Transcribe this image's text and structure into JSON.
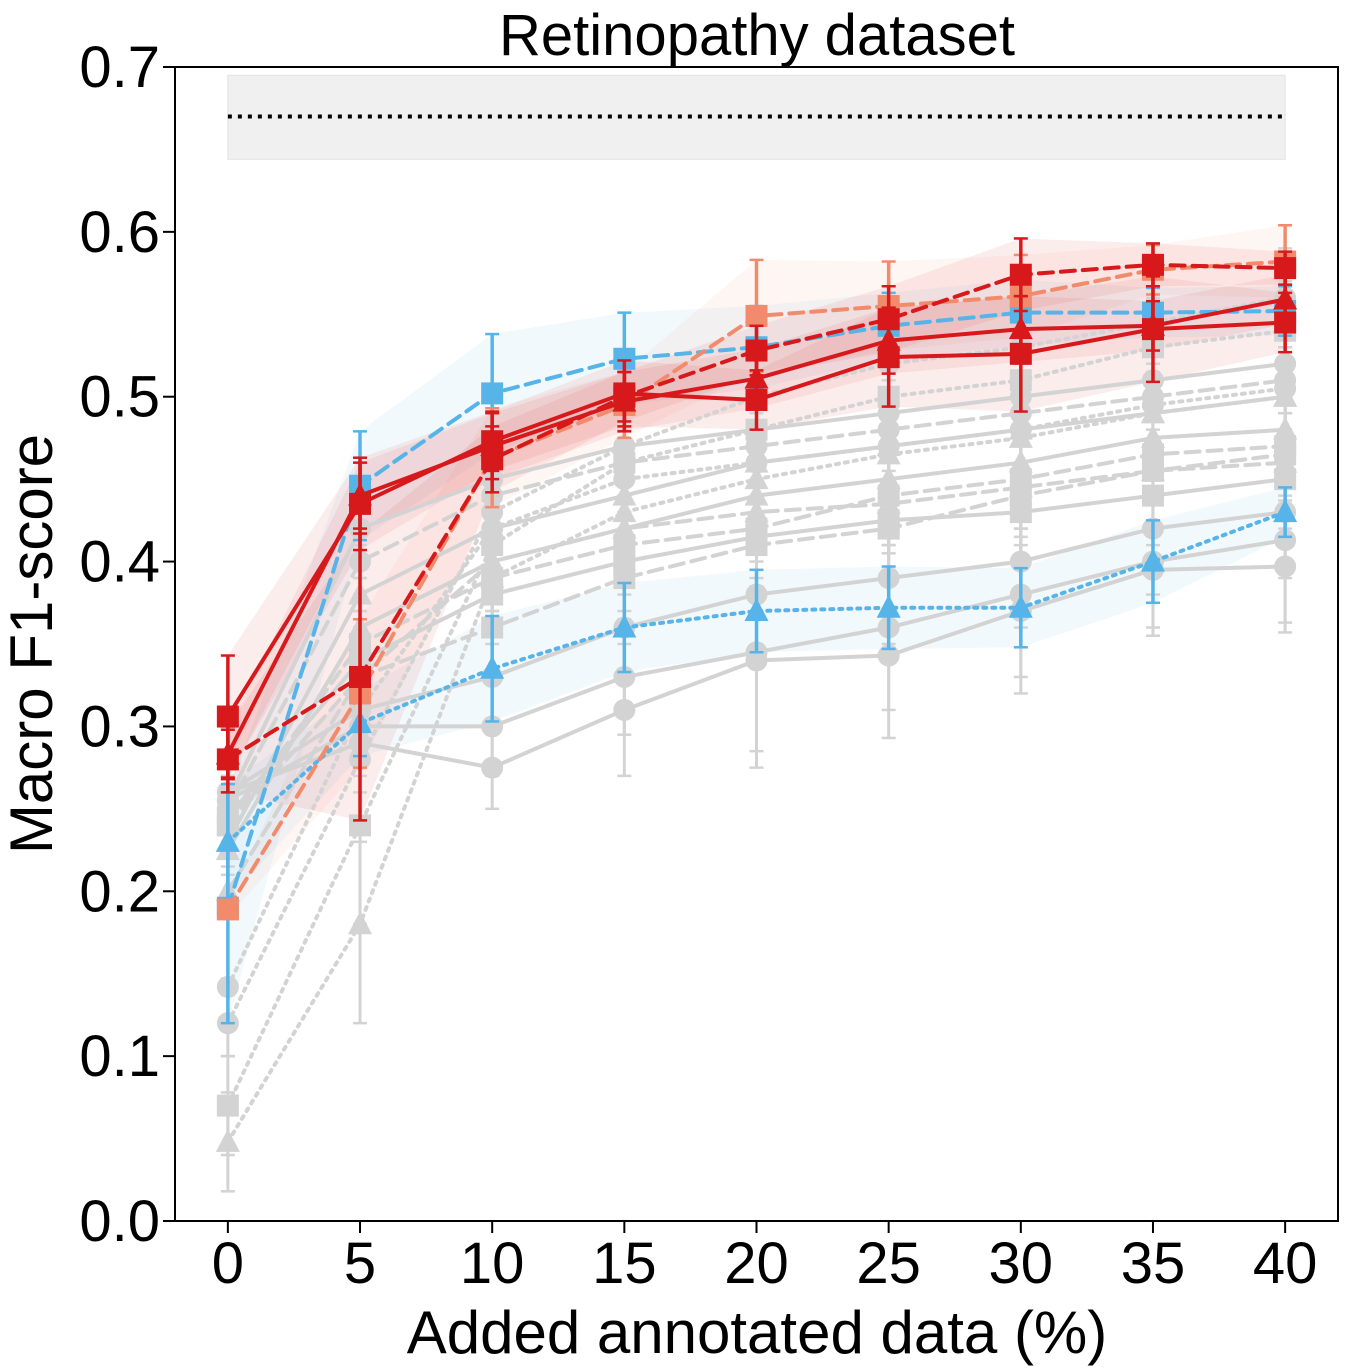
{
  "chart_data": {
    "type": "line",
    "title": "Retinopathy dataset",
    "xlabel": "Added annotated data (%)",
    "ylabel": "Macro F1-score",
    "xlim": [
      -2,
      42
    ],
    "ylim": [
      0.0,
      0.7
    ],
    "xticks": [
      0,
      5,
      10,
      15,
      20,
      25,
      30,
      35,
      40
    ],
    "xtick_labels": [
      "0",
      "5",
      "10",
      "15",
      "20",
      "25",
      "30",
      "35",
      "40"
    ],
    "yticks": [
      0.0,
      0.1,
      0.2,
      0.3,
      0.4,
      0.5,
      0.6,
      0.7
    ],
    "ytick_labels": [
      "0.0",
      "0.1",
      "0.2",
      "0.3",
      "0.4",
      "0.5",
      "0.6",
      "0.7"
    ],
    "grid": false,
    "legend": "none",
    "reference": {
      "value": 0.67,
      "band": [
        0.644,
        0.695
      ],
      "x_range": [
        0,
        40
      ],
      "color": "#000000",
      "band_color": "#f0f0f0",
      "style": "dotted"
    },
    "x": [
      0,
      5,
      10,
      15,
      20,
      25,
      30,
      35,
      40
    ],
    "series": [
      {
        "color": "#d3d3d3",
        "style": "solid",
        "marker": "circle",
        "values": [
          0.26,
          0.29,
          0.275,
          0.31,
          0.34,
          0.343,
          0.37,
          0.395,
          0.397
        ],
        "err": [
          0.01,
          0.03,
          0.025,
          0.04,
          0.065,
          0.05,
          0.05,
          0.04,
          0.04
        ]
      },
      {
        "color": "#d3d3d3",
        "style": "solid",
        "marker": "circle",
        "values": [
          0.255,
          0.3,
          0.3,
          0.33,
          0.345,
          0.36,
          0.38,
          0.4,
          0.413
        ],
        "err": [
          0.01,
          0.03,
          0.03,
          0.035,
          0.06,
          0.05,
          0.05,
          0.04,
          0.05
        ]
      },
      {
        "color": "#d3d3d3",
        "style": "solid",
        "marker": "circle",
        "values": [
          0.26,
          0.31,
          0.33,
          0.36,
          0.38,
          0.39,
          0.4,
          0.42,
          0.43
        ],
        "err": [
          0.01,
          0.03,
          0.03,
          0.03,
          0.04,
          0.04,
          0.04,
          0.04,
          0.04
        ]
      },
      {
        "color": "#d3d3d3",
        "style": "dashed",
        "marker": "square",
        "values": [
          0.24,
          0.33,
          0.36,
          0.39,
          0.41,
          0.42,
          0.44,
          0.455,
          0.465
        ],
        "err": [
          0.01,
          0.03,
          0.03,
          0.03,
          0.03,
          0.03,
          0.03,
          0.03,
          0.03
        ]
      },
      {
        "color": "#d3d3d3",
        "style": "dashed",
        "marker": "square",
        "values": [
          0.24,
          0.35,
          0.39,
          0.41,
          0.42,
          0.44,
          0.45,
          0.465,
          0.47
        ],
        "err": [
          0.01,
          0.03,
          0.03,
          0.03,
          0.03,
          0.03,
          0.03,
          0.03,
          0.03
        ]
      },
      {
        "color": "#d3d3d3",
        "style": "solid",
        "marker": "triangle",
        "values": [
          0.225,
          0.36,
          0.4,
          0.42,
          0.44,
          0.45,
          0.46,
          0.475,
          0.48
        ],
        "err": [
          0.01,
          0.03,
          0.03,
          0.03,
          0.03,
          0.03,
          0.03,
          0.03,
          0.03
        ]
      },
      {
        "color": "#d3d3d3",
        "style": "solid",
        "marker": "triangle",
        "values": [
          0.23,
          0.38,
          0.42,
          0.44,
          0.46,
          0.47,
          0.48,
          0.49,
          0.5
        ],
        "err": [
          0.01,
          0.03,
          0.03,
          0.03,
          0.03,
          0.03,
          0.03,
          0.03,
          0.03
        ]
      },
      {
        "color": "#d3d3d3",
        "style": "dashed",
        "marker": "circle",
        "values": [
          0.25,
          0.4,
          0.44,
          0.46,
          0.47,
          0.48,
          0.49,
          0.5,
          0.51
        ],
        "err": [
          0.01,
          0.03,
          0.03,
          0.03,
          0.03,
          0.03,
          0.03,
          0.03,
          0.03
        ]
      },
      {
        "color": "#d3d3d3",
        "style": "solid",
        "marker": "circle",
        "values": [
          0.255,
          0.42,
          0.45,
          0.47,
          0.48,
          0.49,
          0.5,
          0.51,
          0.52
        ],
        "err": [
          0.01,
          0.03,
          0.03,
          0.03,
          0.03,
          0.03,
          0.03,
          0.03,
          0.03
        ]
      },
      {
        "color": "#d3d3d3",
        "style": "dotted",
        "marker": "circle",
        "values": [
          0.142,
          0.31,
          0.42,
          0.45,
          0.46,
          0.47,
          0.48,
          0.495,
          0.505
        ],
        "err": [
          0.005,
          0.03,
          0.03,
          0.03,
          0.03,
          0.03,
          0.03,
          0.03,
          0.03
        ]
      },
      {
        "color": "#d3d3d3",
        "style": "dotted",
        "marker": "triangle",
        "values": [
          0.048,
          0.18,
          0.39,
          0.43,
          0.45,
          0.465,
          0.475,
          0.49,
          0.5
        ],
        "err": [
          0.03,
          0.06,
          0.03,
          0.03,
          0.03,
          0.03,
          0.03,
          0.03,
          0.03
        ]
      },
      {
        "color": "#d3d3d3",
        "style": "dotted",
        "marker": "square",
        "values": [
          0.07,
          0.24,
          0.41,
          0.46,
          0.48,
          0.5,
          0.51,
          0.53,
          0.54
        ],
        "err": [
          0.03,
          0.06,
          0.03,
          0.03,
          0.03,
          0.03,
          0.03,
          0.03,
          0.03
        ]
      },
      {
        "color": "#d3d3d3",
        "style": "dotted",
        "marker": "circle",
        "values": [
          0.12,
          0.28,
          0.43,
          0.47,
          0.5,
          0.52,
          0.53,
          0.545,
          0.56
        ],
        "err": [
          0.02,
          0.05,
          0.03,
          0.03,
          0.03,
          0.03,
          0.03,
          0.03,
          0.03
        ]
      },
      {
        "color": "#d3d3d3",
        "style": "dashed",
        "marker": "triangle",
        "values": [
          0.2,
          0.33,
          0.4,
          0.42,
          0.43,
          0.435,
          0.445,
          0.455,
          0.46
        ],
        "err": [
          0.01,
          0.03,
          0.03,
          0.03,
          0.03,
          0.03,
          0.03,
          0.03,
          0.03
        ]
      },
      {
        "color": "#d3d3d3",
        "style": "solid",
        "marker": "square",
        "values": [
          0.245,
          0.34,
          0.38,
          0.4,
          0.415,
          0.425,
          0.43,
          0.44,
          0.45
        ],
        "err": [
          0.01,
          0.03,
          0.03,
          0.03,
          0.03,
          0.03,
          0.03,
          0.03,
          0.03
        ]
      },
      {
        "color": "#56b4e9",
        "style": "dashed",
        "marker": "square",
        "values": [
          0.19,
          0.446,
          0.502,
          0.523,
          0.53,
          0.543,
          0.551,
          0.551,
          0.552
        ],
        "err": [
          0.07,
          0.033,
          0.036,
          0.028,
          0.025,
          0.02,
          0.02,
          0.015,
          0.015
        ],
        "band": true
      },
      {
        "color": "#56b4e9",
        "style": "dotted",
        "marker": "triangle",
        "values": [
          0.23,
          0.302,
          0.335,
          0.36,
          0.37,
          0.372,
          0.372,
          0.4,
          0.43
        ],
        "err": [
          0.035,
          0.02,
          0.032,
          0.027,
          0.025,
          0.025,
          0.024,
          0.025,
          0.015
        ],
        "band": true
      },
      {
        "color": "#f28b6c",
        "style": "dashed",
        "marker": "square",
        "values": [
          0.189,
          0.32,
          0.463,
          0.495,
          0.549,
          0.555,
          0.561,
          0.577,
          0.582
        ],
        "err": [
          0.005,
          0.045,
          0.03,
          0.02,
          0.034,
          0.027,
          0.025,
          0.015,
          0.022
        ],
        "band": true
      },
      {
        "color": "#d7191c",
        "style": "solid",
        "marker": "square",
        "values": [
          0.306,
          0.435,
          0.473,
          0.502,
          0.498,
          0.524,
          0.526,
          0.541,
          0.545
        ],
        "err": [
          0.037,
          0.028,
          0.018,
          0.02,
          0.018,
          0.03,
          0.035,
          0.032,
          0.018
        ],
        "band": true
      },
      {
        "color": "#d7191c",
        "style": "solid",
        "marker": "triangle",
        "values": [
          0.283,
          0.44,
          0.47,
          0.497,
          0.511,
          0.534,
          0.541,
          0.543,
          0.559
        ],
        "err": [
          0.015,
          0.02,
          0.02,
          0.018,
          0.018,
          0.02,
          0.02,
          0.015,
          0.015
        ],
        "band": true
      },
      {
        "color": "#d7191c",
        "style": "dashed",
        "marker": "square",
        "values": [
          0.28,
          0.33,
          0.462,
          0.5,
          0.528,
          0.547,
          0.574,
          0.58,
          0.578
        ],
        "err": [
          0.02,
          0.087,
          0.02,
          0.015,
          0.015,
          0.02,
          0.022,
          0.013,
          0.01
        ],
        "band": true
      }
    ]
  }
}
